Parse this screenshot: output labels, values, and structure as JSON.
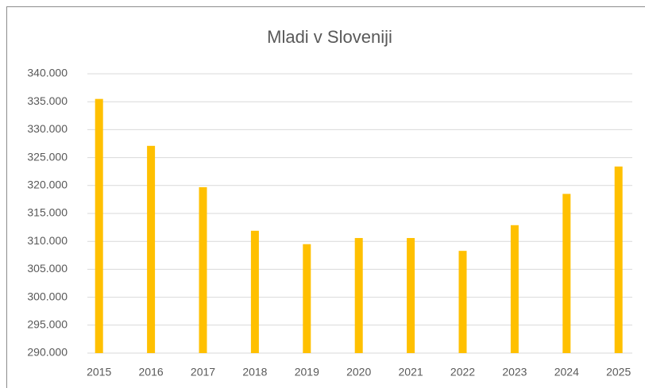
{
  "chart_data": {
    "type": "bar",
    "title": "Mladi v Sloveniji",
    "categories": [
      "2015",
      "2016",
      "2017",
      "2018",
      "2019",
      "2020",
      "2021",
      "2022",
      "2023",
      "2024",
      "2025"
    ],
    "values": [
      335500,
      327100,
      319700,
      311900,
      309500,
      310600,
      310600,
      308300,
      312900,
      318500,
      323400
    ],
    "color": "#ffc000",
    "ylim": [
      290000,
      340000
    ],
    "yticks": [
      {
        "value": 290000,
        "label": "290.000"
      },
      {
        "value": 295000,
        "label": "295.000"
      },
      {
        "value": 300000,
        "label": "300.000"
      },
      {
        "value": 305000,
        "label": "305.000"
      },
      {
        "value": 310000,
        "label": "310.000"
      },
      {
        "value": 315000,
        "label": "315.000"
      },
      {
        "value": 320000,
        "label": "320.000"
      },
      {
        "value": 325000,
        "label": "325.000"
      },
      {
        "value": 330000,
        "label": "330.000"
      },
      {
        "value": 335000,
        "label": "335.000"
      },
      {
        "value": 340000,
        "label": "340.000"
      }
    ],
    "grid": true
  }
}
